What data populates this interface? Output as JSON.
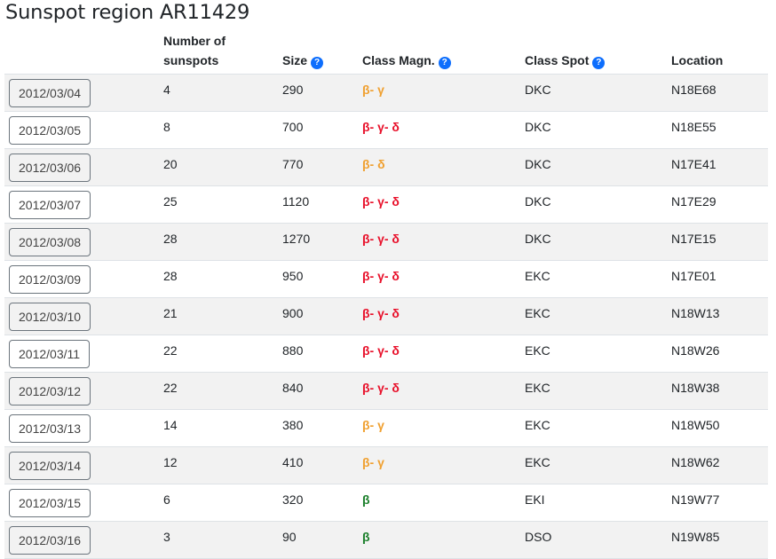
{
  "page": {
    "title": "Sunspot region AR11429"
  },
  "colors": {
    "orange": "#f0a030",
    "red": "#e8102a",
    "green": "#1a7f2a",
    "help_icon": "#0d6efd"
  },
  "table": {
    "headers": {
      "number_line1": "Number of",
      "number_line2": "sunspots",
      "size": "Size",
      "class_magn": "Class Magn.",
      "class_spot": "Class Spot",
      "location": "Location"
    },
    "help_icon_glyph": "?",
    "rows": [
      {
        "date": "2012/03/04",
        "number": "4",
        "size": "290",
        "magn": "β- γ",
        "magn_color": "orange",
        "spot": "DKC",
        "location": "N18E68"
      },
      {
        "date": "2012/03/05",
        "number": "8",
        "size": "700",
        "magn": "β- γ- δ",
        "magn_color": "red",
        "spot": "DKC",
        "location": "N18E55"
      },
      {
        "date": "2012/03/06",
        "number": "20",
        "size": "770",
        "magn": "β- δ",
        "magn_color": "orange",
        "spot": "DKC",
        "location": "N17E41"
      },
      {
        "date": "2012/03/07",
        "number": "25",
        "size": "1120",
        "magn": "β- γ- δ",
        "magn_color": "red",
        "spot": "DKC",
        "location": "N17E29"
      },
      {
        "date": "2012/03/08",
        "number": "28",
        "size": "1270",
        "magn": "β- γ- δ",
        "magn_color": "red",
        "spot": "DKC",
        "location": "N17E15"
      },
      {
        "date": "2012/03/09",
        "number": "28",
        "size": "950",
        "magn": "β- γ- δ",
        "magn_color": "red",
        "spot": "EKC",
        "location": "N17E01"
      },
      {
        "date": "2012/03/10",
        "number": "21",
        "size": "900",
        "magn": "β- γ- δ",
        "magn_color": "red",
        "spot": "EKC",
        "location": "N18W13"
      },
      {
        "date": "2012/03/11",
        "number": "22",
        "size": "880",
        "magn": "β- γ- δ",
        "magn_color": "red",
        "spot": "EKC",
        "location": "N18W26"
      },
      {
        "date": "2012/03/12",
        "number": "22",
        "size": "840",
        "magn": "β- γ- δ",
        "magn_color": "red",
        "spot": "EKC",
        "location": "N18W38"
      },
      {
        "date": "2012/03/13",
        "number": "14",
        "size": "380",
        "magn": "β- γ",
        "magn_color": "orange",
        "spot": "EKC",
        "location": "N18W50"
      },
      {
        "date": "2012/03/14",
        "number": "12",
        "size": "410",
        "magn": "β- γ",
        "magn_color": "orange",
        "spot": "EKC",
        "location": "N18W62"
      },
      {
        "date": "2012/03/15",
        "number": "6",
        "size": "320",
        "magn": "β",
        "magn_color": "green",
        "spot": "EKI",
        "location": "N19W77"
      },
      {
        "date": "2012/03/16",
        "number": "3",
        "size": "90",
        "magn": "β",
        "magn_color": "green",
        "spot": "DSO",
        "location": "N19W85"
      }
    ]
  }
}
